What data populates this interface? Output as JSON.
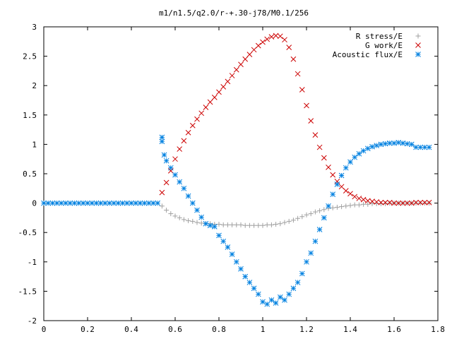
{
  "chart_data": {
    "type": "scatter",
    "title": "m1/n1.5/q2.0/r-+.30-j78/M0.1/256",
    "xlabel": "",
    "ylabel": "",
    "xlim": [
      0,
      1.8
    ],
    "ylim": [
      -2,
      3
    ],
    "grid": false,
    "legend_position": "top-right",
    "xticks": [
      {
        "value": 0,
        "label": "0"
      },
      {
        "value": 0.2,
        "label": "0.2"
      },
      {
        "value": 0.4,
        "label": "0.4"
      },
      {
        "value": 0.6,
        "label": "0.6"
      },
      {
        "value": 0.8,
        "label": "0.8"
      },
      {
        "value": 1.0,
        "label": "1"
      },
      {
        "value": 1.2,
        "label": "1.2"
      },
      {
        "value": 1.4,
        "label": "1.4"
      },
      {
        "value": 1.6,
        "label": "1.6"
      },
      {
        "value": 1.8,
        "label": "1.8"
      }
    ],
    "yticks": [
      {
        "value": -2,
        "label": "-2"
      },
      {
        "value": -1.5,
        "label": "-1.5"
      },
      {
        "value": -1,
        "label": "-1"
      },
      {
        "value": -0.5,
        "label": "-0.5"
      },
      {
        "value": 0,
        "label": "0"
      },
      {
        "value": 0.5,
        "label": "0.5"
      },
      {
        "value": 1,
        "label": "1"
      },
      {
        "value": 1.5,
        "label": "1.5"
      },
      {
        "value": 2,
        "label": "2"
      },
      {
        "value": 2.5,
        "label": "2.5"
      },
      {
        "value": 3,
        "label": "3"
      }
    ],
    "series": [
      {
        "name": "R stress/E",
        "marker": "plus",
        "color": "#a0a0a0",
        "x": [
          0.54,
          0.56,
          0.58,
          0.6,
          0.62,
          0.64,
          0.66,
          0.68,
          0.7,
          0.72,
          0.74,
          0.76,
          0.78,
          0.8,
          0.82,
          0.84,
          0.86,
          0.88,
          0.9,
          0.92,
          0.94,
          0.96,
          0.98,
          1.0,
          1.02,
          1.04,
          1.06,
          1.08,
          1.1,
          1.12,
          1.14,
          1.16,
          1.18,
          1.2,
          1.22,
          1.24,
          1.26,
          1.28,
          1.3,
          1.32,
          1.34,
          1.36,
          1.38,
          1.4,
          1.42,
          1.44,
          1.46,
          1.48,
          1.5,
          1.52,
          1.54,
          1.56,
          1.58,
          1.6,
          1.62,
          1.64,
          1.66,
          1.68,
          1.7,
          1.72,
          1.74,
          1.76
        ],
        "y": [
          -0.05,
          -0.12,
          -0.18,
          -0.22,
          -0.25,
          -0.28,
          -0.3,
          -0.31,
          -0.33,
          -0.34,
          -0.35,
          -0.35,
          -0.36,
          -0.36,
          -0.37,
          -0.37,
          -0.37,
          -0.37,
          -0.37,
          -0.38,
          -0.38,
          -0.38,
          -0.38,
          -0.38,
          -0.37,
          -0.37,
          -0.36,
          -0.35,
          -0.33,
          -0.31,
          -0.29,
          -0.26,
          -0.23,
          -0.2,
          -0.18,
          -0.15,
          -0.13,
          -0.11,
          -0.09,
          -0.08,
          -0.07,
          -0.06,
          -0.05,
          -0.04,
          -0.03,
          -0.03,
          -0.02,
          -0.02,
          -0.01,
          -0.01,
          -0.01,
          -0.01,
          0,
          0,
          0,
          0,
          0,
          0,
          0,
          0,
          0,
          0
        ]
      },
      {
        "name": "G work/E",
        "marker": "cross",
        "color": "#cc0000",
        "x": [
          0.54,
          0.56,
          0.58,
          0.6,
          0.62,
          0.64,
          0.66,
          0.68,
          0.7,
          0.72,
          0.74,
          0.76,
          0.78,
          0.8,
          0.82,
          0.84,
          0.86,
          0.88,
          0.9,
          0.92,
          0.94,
          0.96,
          0.98,
          1.0,
          1.02,
          1.04,
          1.06,
          1.08,
          1.1,
          1.12,
          1.14,
          1.16,
          1.18,
          1.2,
          1.22,
          1.24,
          1.26,
          1.28,
          1.3,
          1.32,
          1.34,
          1.36,
          1.38,
          1.4,
          1.42,
          1.44,
          1.46,
          1.48,
          1.5,
          1.52,
          1.54,
          1.56,
          1.58,
          1.6,
          1.62,
          1.64,
          1.66,
          1.68,
          1.7,
          1.72,
          1.74,
          1.76
        ],
        "y": [
          0.18,
          0.35,
          0.55,
          0.75,
          0.92,
          1.06,
          1.2,
          1.32,
          1.43,
          1.53,
          1.63,
          1.72,
          1.8,
          1.89,
          1.98,
          2.07,
          2.17,
          2.27,
          2.36,
          2.45,
          2.53,
          2.61,
          2.68,
          2.74,
          2.79,
          2.83,
          2.85,
          2.84,
          2.78,
          2.65,
          2.45,
          2.2,
          1.93,
          1.66,
          1.4,
          1.16,
          0.95,
          0.77,
          0.61,
          0.48,
          0.37,
          0.28,
          0.21,
          0.16,
          0.11,
          0.08,
          0.06,
          0.04,
          0.03,
          0.02,
          0.01,
          0.01,
          0.01,
          0,
          0,
          0,
          0,
          0,
          0.01,
          0.01,
          0.01,
          0.01
        ]
      },
      {
        "name": "Acoustic flux/E",
        "marker": "star",
        "color": "#0080e0",
        "x": [
          0,
          0.02,
          0.04,
          0.06,
          0.08,
          0.1,
          0.12,
          0.14,
          0.16,
          0.18,
          0.2,
          0.22,
          0.24,
          0.26,
          0.28,
          0.3,
          0.32,
          0.34,
          0.36,
          0.38,
          0.4,
          0.42,
          0.44,
          0.46,
          0.48,
          0.5,
          0.52,
          0.54,
          0.54,
          0.55,
          0.56,
          0.58,
          0.6,
          0.62,
          0.64,
          0.66,
          0.68,
          0.7,
          0.72,
          0.74,
          0.76,
          0.78,
          0.8,
          0.82,
          0.84,
          0.86,
          0.88,
          0.9,
          0.92,
          0.94,
          0.96,
          0.98,
          1.0,
          1.02,
          1.04,
          1.06,
          1.08,
          1.1,
          1.12,
          1.14,
          1.16,
          1.18,
          1.2,
          1.22,
          1.24,
          1.26,
          1.28,
          1.3,
          1.32,
          1.34,
          1.36,
          1.38,
          1.4,
          1.42,
          1.44,
          1.46,
          1.48,
          1.5,
          1.52,
          1.54,
          1.56,
          1.58,
          1.6,
          1.62,
          1.64,
          1.66,
          1.68,
          1.7,
          1.72,
          1.74,
          1.76
        ],
        "y": [
          0,
          0,
          0,
          0,
          0,
          0,
          0,
          0,
          0,
          0,
          0,
          0,
          0,
          0,
          0,
          0,
          0,
          0,
          0,
          0,
          0,
          0,
          0,
          0,
          0,
          0,
          0,
          1.05,
          1.12,
          0.82,
          0.72,
          0.6,
          0.48,
          0.36,
          0.25,
          0.12,
          0.0,
          -0.12,
          -0.24,
          -0.35,
          -0.38,
          -0.4,
          -0.55,
          -0.65,
          -0.75,
          -0.87,
          -1.0,
          -1.12,
          -1.25,
          -1.35,
          -1.45,
          -1.55,
          -1.68,
          -1.72,
          -1.65,
          -1.7,
          -1.6,
          -1.65,
          -1.55,
          -1.45,
          -1.35,
          -1.2,
          -1.0,
          -0.85,
          -0.65,
          -0.45,
          -0.25,
          -0.05,
          0.15,
          0.32,
          0.47,
          0.6,
          0.7,
          0.78,
          0.84,
          0.89,
          0.93,
          0.96,
          0.98,
          1.0,
          1.01,
          1.02,
          1.02,
          1.03,
          1.02,
          1.01,
          1.0,
          0.95,
          0.95,
          0.95,
          0.95
        ]
      }
    ]
  }
}
